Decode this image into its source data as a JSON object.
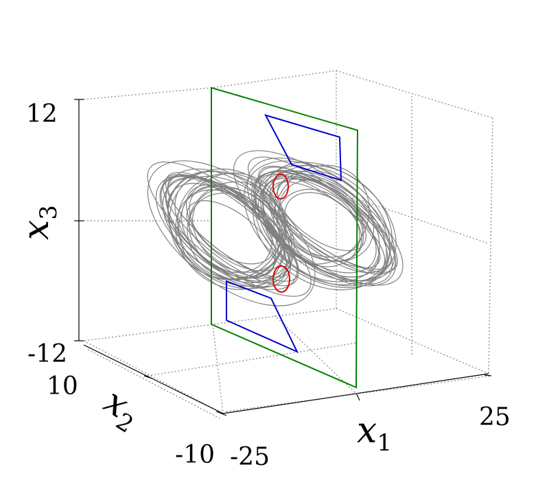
{
  "axes": {
    "x1": {
      "symbol": "x",
      "index": "1",
      "ticks": [
        -25,
        25
      ]
    },
    "x2": {
      "symbol": "x",
      "index": "2",
      "ticks": [
        10,
        -10
      ]
    },
    "x3": {
      "symbol": "x",
      "index": "3",
      "ticks": [
        12,
        -12
      ]
    }
  }
}
